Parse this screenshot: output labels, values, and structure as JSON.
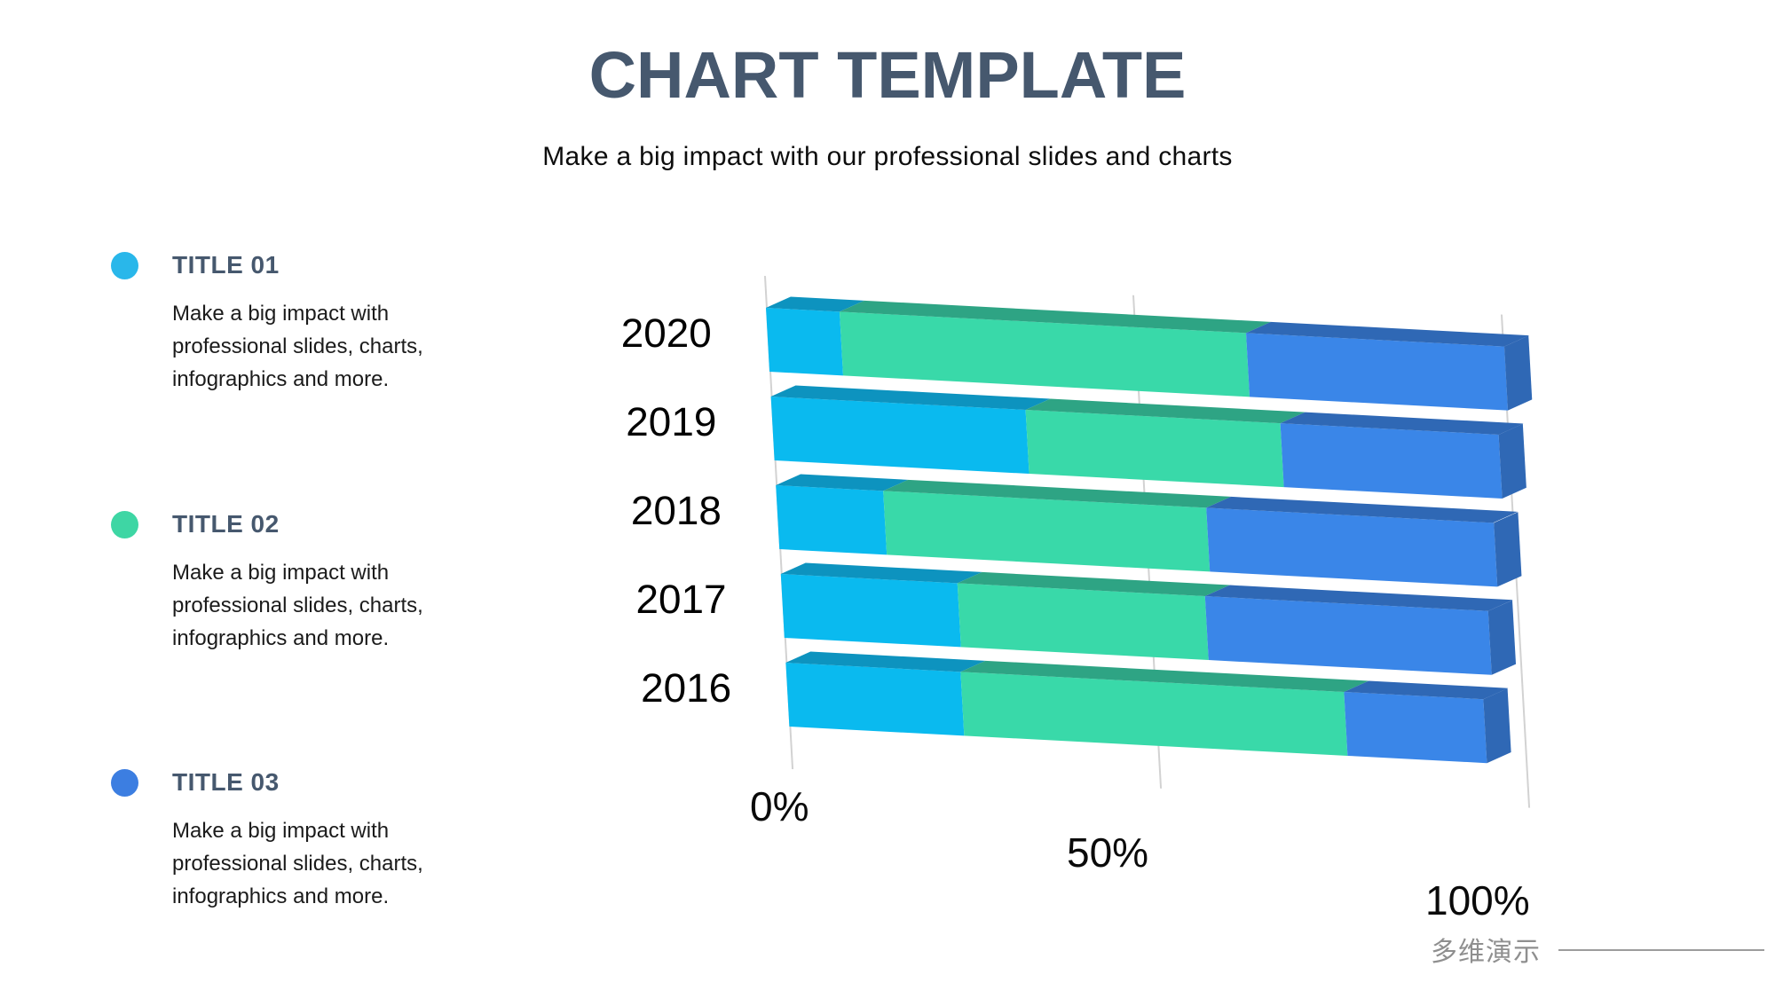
{
  "slide": {
    "title": "CHART TEMPLATE",
    "subtitle": "Make a big impact with our professional slides and charts"
  },
  "legend": {
    "items": [
      {
        "label": "TITLE 01",
        "color": "#29B7EA",
        "description": "Make a big impact with professional slides, charts, infographics and more."
      },
      {
        "label": "TITLE 02",
        "color": "#3ED6A4",
        "description": "Make a big impact with professional slides, charts, infographics and more."
      },
      {
        "label": "TITLE 03",
        "color": "#3C7EE1",
        "description": "Make a big impact with professional slides, charts, infographics and more."
      }
    ]
  },
  "chart_data": {
    "type": "bar",
    "orientation": "horizontal",
    "stacked": true,
    "units": "percent",
    "projection": "3d",
    "grid": true,
    "categories": [
      "2020",
      "2019",
      "2018",
      "2017",
      "2016"
    ],
    "series": [
      {
        "name": "Title 01",
        "color_front": "#0ABAEF",
        "color_top": "#0D93BF",
        "values": [
          10,
          35,
          15,
          25,
          25
        ]
      },
      {
        "name": "Title 02",
        "color_front": "#39D9A9",
        "color_top": "#2EA484",
        "values": [
          55,
          35,
          45,
          35,
          55
        ]
      },
      {
        "name": "Title 03",
        "color_front": "#3A86E8",
        "color_top": "#2F68B5",
        "values": [
          35,
          30,
          40,
          40,
          20
        ]
      }
    ],
    "x_axis": {
      "range": [
        0,
        100
      ],
      "ticks": [
        {
          "label": "0%",
          "value": 0
        },
        {
          "label": "50%",
          "value": 50
        },
        {
          "label": "100%",
          "value": 100
        }
      ]
    }
  },
  "footer": {
    "brand": "多维演示"
  }
}
